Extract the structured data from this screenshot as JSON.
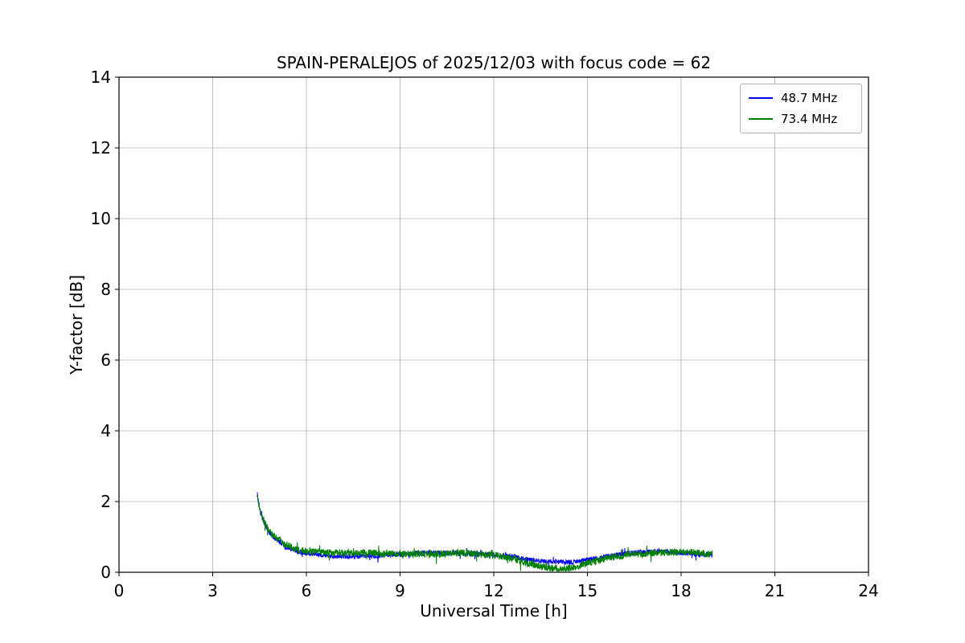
{
  "chart_data": {
    "type": "line",
    "title": "SPAIN-PERALEJOS of 2025/12/03 with focus code = 62",
    "xlabel": "Universal Time [h]",
    "ylabel": "Y-factor [dB]",
    "xlim": [
      0,
      24
    ],
    "ylim": [
      0,
      14
    ],
    "xticks": [
      0,
      3,
      6,
      9,
      12,
      15,
      18,
      21,
      24
    ],
    "yticks": [
      0,
      2,
      4,
      6,
      8,
      10,
      12,
      14
    ],
    "grid": true,
    "grid_color": "#b0b0b0",
    "frame_color": "#000000",
    "legend_position": "upper right",
    "series": [
      {
        "name": "48.7 MHz",
        "color": "#0000ff",
        "noise": 0.07,
        "x": [
          4.42,
          4.5,
          4.62,
          4.8,
          5.0,
          5.3,
          5.7,
          6.2,
          7.0,
          8.0,
          9.0,
          9.8,
          10.8,
          11.8,
          12.5,
          13.2,
          13.8,
          14.5,
          15.0,
          15.6,
          16.4,
          17.2,
          18.0,
          18.6,
          19.0
        ],
        "y": [
          2.3,
          1.8,
          1.45,
          1.15,
          0.95,
          0.75,
          0.6,
          0.5,
          0.45,
          0.45,
          0.5,
          0.55,
          0.55,
          0.5,
          0.45,
          0.35,
          0.3,
          0.28,
          0.35,
          0.45,
          0.55,
          0.6,
          0.55,
          0.5,
          0.5
        ]
      },
      {
        "name": "73.4 MHz",
        "color": "#008000",
        "noise": 0.1,
        "x": [
          4.42,
          4.5,
          4.62,
          4.8,
          5.0,
          5.3,
          5.7,
          6.2,
          7.0,
          8.0,
          9.0,
          9.8,
          10.8,
          11.8,
          12.5,
          13.2,
          13.8,
          14.5,
          15.0,
          15.6,
          16.4,
          17.2,
          18.0,
          18.6,
          19.0
        ],
        "y": [
          2.15,
          1.85,
          1.5,
          1.2,
          1.0,
          0.8,
          0.65,
          0.58,
          0.55,
          0.55,
          0.52,
          0.5,
          0.55,
          0.5,
          0.42,
          0.22,
          0.12,
          0.12,
          0.25,
          0.4,
          0.5,
          0.55,
          0.58,
          0.55,
          0.5
        ]
      }
    ]
  }
}
